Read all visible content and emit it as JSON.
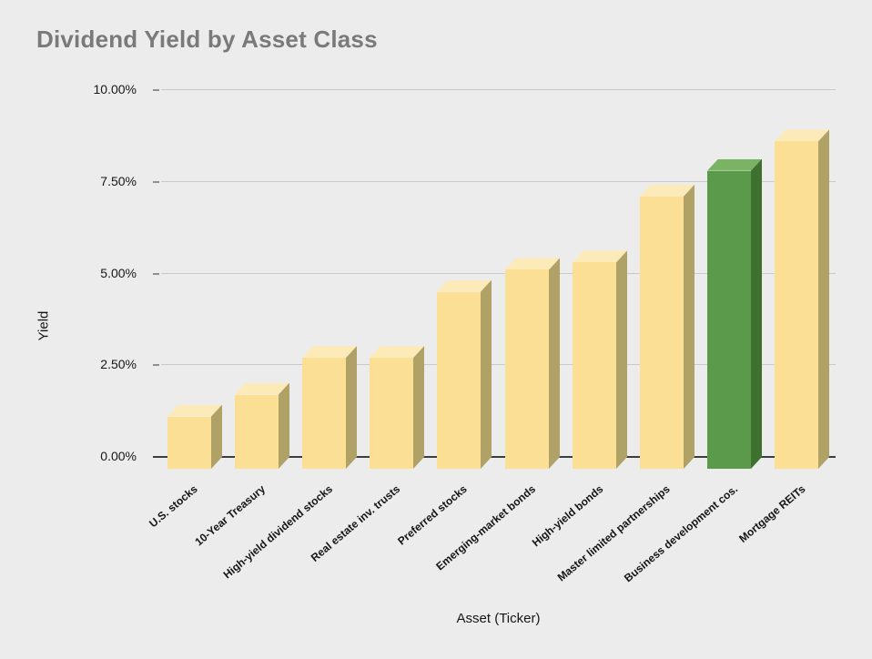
{
  "title": "Dividend Yield by Asset Class",
  "chart_data": {
    "type": "bar",
    "title": "Dividend Yield by Asset Class",
    "xlabel": "Asset (Ticker)",
    "ylabel": "Yield",
    "categories": [
      "U.S. stocks",
      "10-Year Treasury",
      "High-yield dividend stocks",
      "Real estate inv. trusts",
      "Preferred stocks",
      "Emerging-market bonds",
      "High-yield bonds",
      "Master limited partnerships",
      "Business development cos.",
      "Mortgage REITs"
    ],
    "values": [
      1.1,
      1.7,
      2.7,
      2.7,
      4.5,
      5.1,
      5.3,
      7.1,
      7.8,
      8.6
    ],
    "value_unit": "%",
    "ylim": [
      0,
      10
    ],
    "ytick_labels": [
      "0.00%",
      "2.50%",
      "5.00%",
      "7.50%",
      "10.00%"
    ],
    "ytick_values": [
      0,
      2.5,
      5,
      7.5,
      10
    ],
    "grid": true,
    "legend_position": "none",
    "style": "3d-bars",
    "highlight_index": 8,
    "colors": {
      "background": "#ececec",
      "title_text": "#7a7a7a",
      "axis_line": "#3d3d3d",
      "gridline": "#c9c9c9",
      "bar_front": "#fadf94",
      "bar_top": "#fceab8",
      "bar_side": "#b0a167",
      "highlight_front": "#5b9a4b",
      "highlight_top": "#79b363",
      "highlight_side": "#3e7030"
    }
  }
}
